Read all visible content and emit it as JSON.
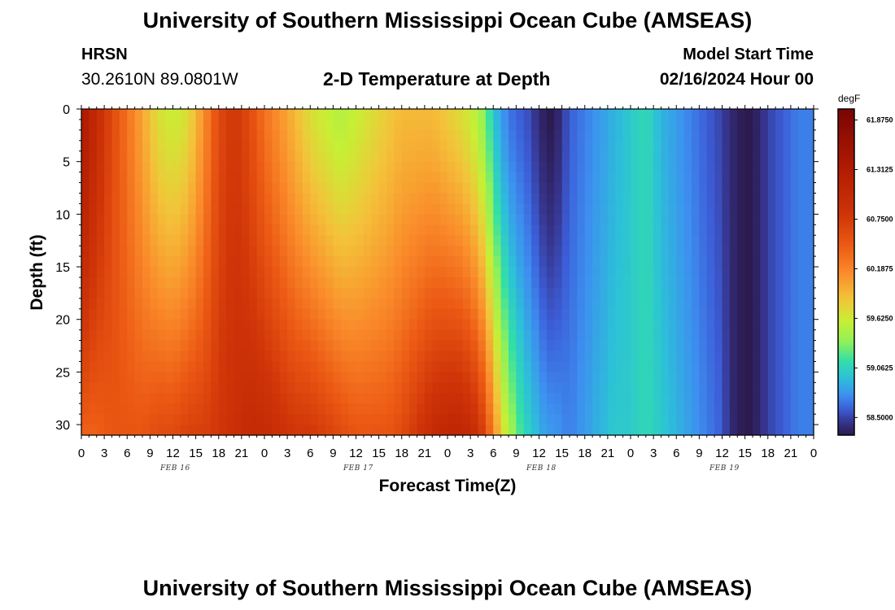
{
  "header": {
    "title": "University of Southern Mississippi Ocean Cube (AMSEAS)",
    "station_name": "HRSN",
    "coordinates": "30.2610N  89.0801W",
    "chart_title": "2-D Temperature at Depth",
    "model_start_label": "Model Start Time",
    "model_start_time": "02/16/2024 Hour 00"
  },
  "footer": {
    "title": "University of Southern Mississippi Ocean Cube (AMSEAS)"
  },
  "chart_data": {
    "type": "heatmap",
    "title": "2-D Temperature at Depth",
    "xlabel": "Forecast Time(Z)",
    "ylabel": "Depth (ft)",
    "x_tick_labels": [
      "0",
      "3",
      "6",
      "9",
      "12",
      "15",
      "18",
      "21",
      "0",
      "3",
      "6",
      "9",
      "12",
      "15",
      "18",
      "21",
      "0",
      "3",
      "6",
      "9",
      "12",
      "15",
      "18",
      "21",
      "0",
      "3",
      "6",
      "9",
      "12",
      "15",
      "18",
      "21",
      "0"
    ],
    "date_labels": [
      "FEB 16",
      "FEB 17",
      "FEB 18",
      "FEB 19"
    ],
    "x_hours": [
      0,
      96
    ],
    "y_ticks": [
      0,
      5,
      10,
      15,
      20,
      25,
      30
    ],
    "ylim": [
      0,
      31
    ],
    "y_inverted": true,
    "colorbar": {
      "unit": "degF",
      "tick_labels": [
        "61.8750",
        "61.3125",
        "60.7500",
        "60.1875",
        "59.6250",
        "59.0625",
        "58.5000"
      ],
      "range": [
        58.3,
        62.0
      ],
      "stops": [
        {
          "v": 58.3,
          "color": "#2c1a4e"
        },
        {
          "v": 58.45,
          "color": "#36348c"
        },
        {
          "v": 58.6,
          "color": "#3c5ed8"
        },
        {
          "v": 58.75,
          "color": "#3d8ff0"
        },
        {
          "v": 58.95,
          "color": "#2cc1d8"
        },
        {
          "v": 59.15,
          "color": "#33e0a6"
        },
        {
          "v": 59.35,
          "color": "#8ff159"
        },
        {
          "v": 59.6,
          "color": "#c8ef34"
        },
        {
          "v": 59.85,
          "color": "#f4c23a"
        },
        {
          "v": 60.15,
          "color": "#fa8a2a"
        },
        {
          "v": 60.45,
          "color": "#ec5a14"
        },
        {
          "v": 60.8,
          "color": "#cf3508"
        },
        {
          "v": 61.3,
          "color": "#b21c02"
        },
        {
          "v": 62.0,
          "color": "#7a0403"
        }
      ]
    },
    "temperature_profile": {
      "hours": [
        0,
        2,
        4,
        6,
        8,
        10,
        12,
        14,
        16,
        18,
        20,
        22,
        24,
        26,
        28,
        30,
        32,
        34,
        36,
        38,
        40,
        42,
        44,
        46,
        48,
        50,
        52,
        53,
        54,
        55,
        56,
        57,
        58,
        59,
        60,
        61,
        62,
        64,
        66,
        68,
        70,
        72,
        74,
        76,
        78,
        80,
        82,
        84,
        85,
        86,
        87,
        88,
        90,
        92,
        94,
        96
      ],
      "surface": [
        61.4,
        61.0,
        60.6,
        60.3,
        60.0,
        59.7,
        59.6,
        59.7,
        60.1,
        60.6,
        60.8,
        60.6,
        60.3,
        60.1,
        59.9,
        59.7,
        59.6,
        59.5,
        59.6,
        59.7,
        59.8,
        59.9,
        59.9,
        59.9,
        59.8,
        59.7,
        59.5,
        59.3,
        59.0,
        58.8,
        58.7,
        58.6,
        58.6,
        58.5,
        58.4,
        58.3,
        58.3,
        58.6,
        58.7,
        58.8,
        58.9,
        59.0,
        59.1,
        58.9,
        58.8,
        58.7,
        58.6,
        58.5,
        58.4,
        58.35,
        58.3,
        58.3,
        58.5,
        58.6,
        58.7,
        58.7
      ],
      "bottom": [
        60.4,
        60.4,
        60.5,
        60.5,
        60.5,
        60.6,
        60.6,
        60.7,
        60.7,
        60.8,
        60.9,
        61.0,
        61.0,
        60.9,
        60.8,
        60.8,
        60.7,
        60.6,
        60.5,
        60.5,
        60.5,
        60.6,
        60.8,
        61.0,
        61.1,
        61.1,
        60.9,
        60.6,
        60.2,
        59.8,
        59.5,
        59.3,
        59.1,
        59.0,
        58.9,
        58.8,
        58.8,
        58.7,
        58.8,
        58.9,
        59.0,
        59.0,
        59.1,
        59.0,
        58.9,
        58.8,
        58.7,
        58.6,
        58.4,
        58.35,
        58.3,
        58.3,
        58.5,
        58.6,
        58.7,
        58.7
      ]
    }
  }
}
